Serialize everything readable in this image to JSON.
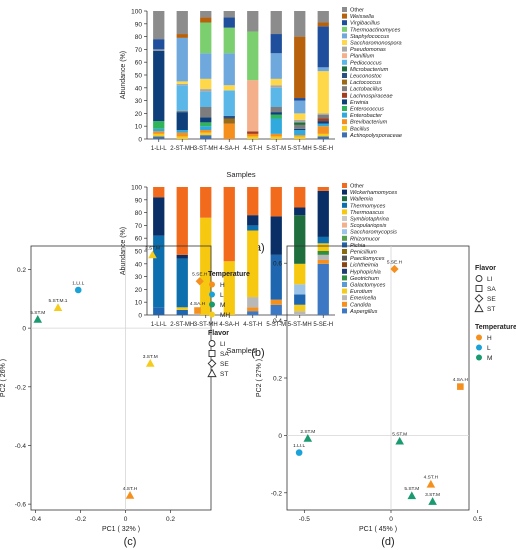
{
  "colors": {
    "axis": "#333333",
    "grid": "#d6d6d6",
    "H": "#f5901e",
    "L": "#1ba3d9",
    "M": "#1a9a70",
    "MH": "#f6cc1c"
  },
  "panel_labels": [
    "(a)",
    "(b)",
    "(c)",
    "(d)"
  ],
  "chart_data": [
    {
      "type": "bar",
      "stacked": true,
      "ylabel": "Abundance (%)",
      "xlabel": "Samples",
      "ylim": [
        0,
        100
      ],
      "yticks": [
        0,
        10,
        20,
        30,
        40,
        50,
        60,
        70,
        80,
        90,
        100
      ],
      "categories": [
        "1-LI-L",
        "2-ST-MH",
        "3-ST-MH",
        "4-SA-H",
        "4-ST-H",
        "5-ST-M",
        "5-ST-MH",
        "5-SE-H"
      ],
      "series": [
        {
          "name": "Actinopolysporaceae",
          "color": "#3d6fb4",
          "values": [
            2,
            0,
            3,
            0,
            0,
            0,
            0,
            2
          ]
        },
        {
          "name": "Bacillus",
          "color": "#f6cc1c",
          "values": [
            2,
            2,
            2,
            0,
            2,
            2,
            2,
            2
          ]
        },
        {
          "name": "Brevibacterium",
          "color": "#f5901e",
          "values": [
            2,
            3,
            2,
            12,
            2,
            2,
            1,
            6
          ]
        },
        {
          "name": "Enterobacter",
          "color": "#30a9de",
          "values": [
            2,
            2,
            3,
            0,
            0,
            12,
            4,
            2
          ]
        },
        {
          "name": "Enterococcus",
          "color": "#2fb45a",
          "values": [
            6,
            0,
            3,
            0,
            0,
            3,
            0,
            0
          ]
        },
        {
          "name": "Erwinia",
          "color": "#0e3f7a",
          "values": [
            55,
            14,
            4,
            0,
            0,
            2,
            1,
            2
          ]
        },
        {
          "name": "Lachnospiraceae",
          "color": "#a53c1e",
          "values": [
            0,
            0,
            0,
            0,
            2,
            0,
            0,
            2
          ]
        },
        {
          "name": "Lactobacillus",
          "color": "#7d7d7d",
          "values": [
            0,
            1,
            8,
            0,
            0,
            4,
            3,
            3
          ]
        },
        {
          "name": "Lactococcus",
          "color": "#9a6a16",
          "values": [
            0,
            0,
            0,
            4,
            0,
            0,
            0,
            0
          ]
        },
        {
          "name": "Leuconostoc",
          "color": "#2a5082",
          "values": [
            0,
            0,
            0,
            2,
            0,
            0,
            0,
            0
          ]
        },
        {
          "name": "Microbacterium",
          "color": "#1f6e3a",
          "values": [
            0,
            0,
            0,
            0,
            0,
            0,
            2,
            0
          ]
        },
        {
          "name": "Pediococcus",
          "color": "#5bb7e8",
          "values": [
            0,
            20,
            12,
            20,
            0,
            15,
            0,
            0
          ]
        },
        {
          "name": "Planifilum",
          "color": "#f4b08a",
          "values": [
            0,
            0,
            0,
            0,
            40,
            0,
            0,
            0
          ]
        },
        {
          "name": "Pseudomonas",
          "color": "#a8a8a8",
          "values": [
            1,
            1,
            2,
            0,
            0,
            2,
            2,
            1
          ]
        },
        {
          "name": "Saccharomonospora",
          "color": "#ffd84a",
          "values": [
            0,
            2,
            8,
            4,
            0,
            5,
            5,
            33
          ]
        },
        {
          "name": "Staphylococcus",
          "color": "#6fa8dc",
          "values": [
            0,
            34,
            20,
            25,
            0,
            20,
            10,
            3
          ]
        },
        {
          "name": "Thermoactinomyces",
          "color": "#7ccf6e",
          "values": [
            0,
            0,
            24,
            20,
            38,
            0,
            0,
            0
          ]
        },
        {
          "name": "Virgibacillus",
          "color": "#1f4e9c",
          "values": [
            8,
            0,
            0,
            8,
            0,
            15,
            2,
            32
          ]
        },
        {
          "name": "Weissella",
          "color": "#b8610c",
          "values": [
            0,
            3,
            4,
            0,
            0,
            0,
            48,
            3
          ]
        },
        {
          "name": "Other",
          "color": "#8c8c8c",
          "values": [
            22,
            18,
            5,
            5,
            16,
            18,
            20,
            9
          ]
        }
      ]
    },
    {
      "type": "bar",
      "stacked": true,
      "ylabel": "Abundance (%)",
      "xlabel": "Samples",
      "ylim": [
        0,
        100
      ],
      "yticks": [
        0,
        10,
        20,
        30,
        40,
        50,
        60,
        70,
        80,
        90,
        100
      ],
      "categories": [
        "1-LI-L",
        "2-ST-MH",
        "3-ST-MH",
        "4-SA-H",
        "4-ST-H",
        "5-ST-M",
        "5-ST-MH",
        "5-SE-H"
      ],
      "series": [
        {
          "name": "Aspergillus",
          "color": "#3d78c4",
          "values": [
            0,
            0,
            0,
            0,
            3,
            8,
            0,
            40
          ]
        },
        {
          "name": "Candida",
          "color": "#f5901e",
          "values": [
            0,
            0,
            0,
            0,
            3,
            4,
            0,
            3
          ]
        },
        {
          "name": "Emericella",
          "color": "#b8b8b8",
          "values": [
            0,
            0,
            0,
            0,
            8,
            0,
            3,
            4
          ]
        },
        {
          "name": "Eurotium",
          "color": "#f6cc1c",
          "values": [
            0,
            0,
            0,
            0,
            0,
            0,
            5,
            0
          ]
        },
        {
          "name": "Galactomyces",
          "color": "#5b9bd5",
          "values": [
            0,
            0,
            0,
            0,
            0,
            0,
            0,
            0
          ]
        },
        {
          "name": "Geotrichum",
          "color": "#2e8f42",
          "values": [
            0,
            0,
            0,
            0,
            0,
            0,
            0,
            3
          ]
        },
        {
          "name": "Hyphopichia",
          "color": "#1f3d73",
          "values": [
            0,
            0,
            0,
            0,
            0,
            0,
            0,
            0
          ]
        },
        {
          "name": "Lichtheimia",
          "color": "#8a4412",
          "values": [
            0,
            0,
            0,
            0,
            0,
            0,
            0,
            0
          ]
        },
        {
          "name": "Paecilomyces",
          "color": "#555555",
          "values": [
            0,
            0,
            0,
            0,
            0,
            0,
            0,
            0
          ]
        },
        {
          "name": "Penicillium",
          "color": "#8a6a10",
          "values": [
            0,
            0,
            0,
            0,
            0,
            0,
            0,
            0
          ]
        },
        {
          "name": "Pichia",
          "color": "#1f66b0",
          "values": [
            6,
            4,
            0,
            0,
            0,
            35,
            8,
            0
          ]
        },
        {
          "name": "Rhizomucor",
          "color": "#55a04a",
          "values": [
            0,
            0,
            0,
            0,
            0,
            0,
            0,
            0
          ]
        },
        {
          "name": "Saccharomycopsis",
          "color": "#9cc3e8",
          "values": [
            0,
            0,
            0,
            0,
            0,
            0,
            8,
            0
          ]
        },
        {
          "name": "Scopulariopsis",
          "color": "#f4b08a",
          "values": [
            0,
            0,
            0,
            0,
            0,
            0,
            0,
            0
          ]
        },
        {
          "name": "Symbiotaphrina",
          "color": "#c9c9c9",
          "values": [
            0,
            0,
            0,
            0,
            0,
            0,
            0,
            0
          ]
        },
        {
          "name": "Thermoascus",
          "color": "#f7c810",
          "values": [
            0,
            2,
            76,
            42,
            52,
            0,
            16,
            6
          ]
        },
        {
          "name": "Thermomyces",
          "color": "#0e6fae",
          "values": [
            56,
            38,
            0,
            0,
            4,
            0,
            0,
            5
          ]
        },
        {
          "name": "Wallemia",
          "color": "#1e6e3e",
          "values": [
            0,
            0,
            0,
            0,
            0,
            0,
            38,
            0
          ]
        },
        {
          "name": "Wickerhamomyces",
          "color": "#0a2f66",
          "values": [
            30,
            3,
            0,
            0,
            8,
            30,
            6,
            36
          ]
        },
        {
          "name": "Other",
          "color": "#f26a1b",
          "values": [
            8,
            53,
            24,
            58,
            22,
            23,
            16,
            3
          ]
        }
      ]
    },
    {
      "type": "scatter",
      "xlabel": "PC1 ( 32% )",
      "ylabel": "PC2 ( 26% )",
      "xlim": [
        -0.42,
        0.38
      ],
      "ylim": [
        -0.62,
        0.28
      ],
      "xticks": [
        -0.4,
        -0.2,
        0,
        0.2
      ],
      "yticks": [
        -0.6,
        -0.4,
        -0.2,
        0,
        0.2
      ],
      "legend": [
        {
          "title": "Temperature",
          "entries": [
            {
              "name": "H",
              "color": "#f5901e",
              "shape": "circle"
            },
            {
              "name": "L",
              "color": "#1ba3d9",
              "shape": "circle"
            },
            {
              "name": "M",
              "color": "#1a9a70",
              "shape": "circle"
            },
            {
              "name": "MH",
              "color": "#f6cc1c",
              "shape": "circle"
            }
          ]
        },
        {
          "title": "Flavor",
          "entries": [
            {
              "name": "LI",
              "shape": "circle"
            },
            {
              "name": "SA",
              "shape": "square"
            },
            {
              "name": "SE",
              "shape": "diamond"
            },
            {
              "name": "ST",
              "shape": "triangle"
            }
          ]
        }
      ],
      "points": [
        {
          "label": "1.LI.L",
          "x": -0.21,
          "y": 0.13,
          "temp": "L",
          "flavor": "LI"
        },
        {
          "label": "5.ST.M",
          "x": -0.39,
          "y": 0.03,
          "temp": "M",
          "flavor": "ST"
        },
        {
          "label": "5.ST.M.1",
          "x": -0.3,
          "y": 0.07,
          "temp": "MH",
          "flavor": "ST"
        },
        {
          "label": "2.ST.M",
          "x": 0.12,
          "y": 0.25,
          "temp": "MH",
          "flavor": "ST"
        },
        {
          "label": "3.ST.M",
          "x": 0.11,
          "y": -0.12,
          "temp": "MH",
          "flavor": "ST"
        },
        {
          "label": "4.SA.H",
          "x": 0.32,
          "y": 0.06,
          "temp": "H",
          "flavor": "SA"
        },
        {
          "label": "5.SE.H",
          "x": 0.33,
          "y": 0.16,
          "temp": "H",
          "flavor": "SE"
        },
        {
          "label": "4.ST.H",
          "x": 0.02,
          "y": -0.57,
          "temp": "H",
          "flavor": "ST"
        }
      ]
    },
    {
      "type": "scatter",
      "xlabel": "PC1 ( 45% )",
      "ylabel": "PC2 ( 27% )",
      "xlim": [
        -0.6,
        0.45
      ],
      "ylim": [
        -0.26,
        0.66
      ],
      "xticks": [
        -0.5,
        0,
        0.5
      ],
      "yticks": [
        -0.2,
        0,
        0.2,
        0.4,
        0.6
      ],
      "legend": [
        {
          "title": "Flavor",
          "entries": [
            {
              "name": "LI",
              "shape": "circle"
            },
            {
              "name": "SA",
              "shape": "square"
            },
            {
              "name": "SE",
              "shape": "diamond"
            },
            {
              "name": "ST",
              "shape": "triangle"
            }
          ]
        },
        {
          "title": "Temperature",
          "entries": [
            {
              "name": "H",
              "color": "#f5901e",
              "shape": "circle"
            },
            {
              "name": "L",
              "color": "#1ba3d9",
              "shape": "circle"
            },
            {
              "name": "M",
              "color": "#1a9a70",
              "shape": "circle"
            }
          ]
        }
      ],
      "points": [
        {
          "label": "5.SE.H",
          "x": 0.02,
          "y": 0.58,
          "temp": "H",
          "flavor": "SE"
        },
        {
          "label": "4.SA.H",
          "x": 0.4,
          "y": 0.17,
          "temp": "H",
          "flavor": "SA"
        },
        {
          "label": "2.ST.M",
          "x": -0.48,
          "y": -0.01,
          "temp": "M",
          "flavor": "ST"
        },
        {
          "label": "1.LI.L",
          "x": -0.53,
          "y": -0.06,
          "temp": "L",
          "flavor": "LI"
        },
        {
          "label": "5.ST.M",
          "x": 0.05,
          "y": -0.02,
          "temp": "M",
          "flavor": "ST"
        },
        {
          "label": "4.ST.H",
          "x": 0.23,
          "y": -0.17,
          "temp": "H",
          "flavor": "ST"
        },
        {
          "label": "5.ST.M",
          "x": 0.12,
          "y": -0.21,
          "temp": "M",
          "flavor": "ST"
        },
        {
          "label": "3.ST.M",
          "x": 0.24,
          "y": -0.23,
          "temp": "M",
          "flavor": "ST"
        }
      ]
    }
  ]
}
